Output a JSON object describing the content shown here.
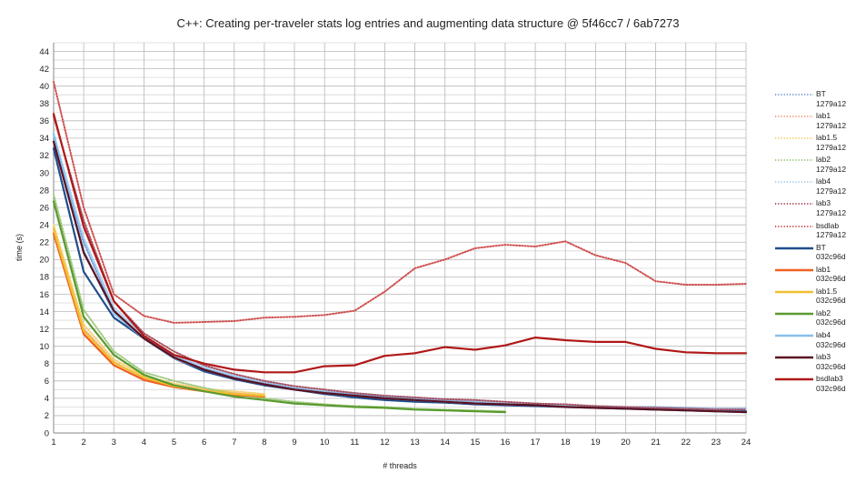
{
  "chart_data": {
    "type": "line",
    "title": "C++: Creating per-traveler stats log entries and augmenting data structure @ 5f46cc7 / 6ab7273",
    "xlabel": "# threads",
    "ylabel": "time (s)",
    "xlim": [
      1,
      24
    ],
    "ylim": [
      0,
      45
    ],
    "x_ticks": [
      1,
      2,
      3,
      4,
      5,
      6,
      7,
      8,
      9,
      10,
      11,
      12,
      13,
      14,
      15,
      16,
      17,
      18,
      19,
      20,
      21,
      22,
      23,
      24
    ],
    "y_ticks": [
      0,
      2,
      4,
      6,
      8,
      10,
      12,
      14,
      16,
      18,
      20,
      22,
      24,
      26,
      28,
      30,
      32,
      34,
      36,
      38,
      40,
      42,
      44
    ],
    "grid": true,
    "legend_position": "right",
    "series": [
      {
        "label": "BT",
        "sublabel": "1279a12",
        "color": "#7a9fd4",
        "style": "dotted",
        "x": [
          1,
          2,
          3,
          4,
          5,
          6,
          7,
          8,
          9,
          10,
          11,
          12,
          13,
          14,
          15,
          16,
          17,
          18,
          19,
          20,
          21,
          22,
          23,
          24
        ],
        "values": [
          34.0,
          22.0,
          14.0,
          11.0,
          8.8,
          7.4,
          6.5,
          5.8,
          5.2,
          4.8,
          4.5,
          4.2,
          4.0,
          3.8,
          3.6,
          3.5,
          3.4,
          3.2,
          3.1,
          3.0,
          3.0,
          2.9,
          2.8,
          2.8
        ]
      },
      {
        "label": "lab1",
        "sublabel": "1279a12",
        "color": "#f0a080",
        "style": "dotted",
        "x": [
          1,
          2,
          3,
          4,
          5,
          6,
          7,
          8
        ],
        "values": [
          23.5,
          12.0,
          8.2,
          6.3,
          5.5,
          5.0,
          4.6,
          4.3
        ]
      },
      {
        "label": "lab1.5",
        "sublabel": "1279a12",
        "color": "#f5d070",
        "style": "dotted",
        "x": [
          1,
          2,
          3,
          4,
          5,
          6,
          7,
          8
        ],
        "values": [
          24.0,
          12.5,
          8.5,
          6.6,
          5.7,
          5.1,
          4.8,
          4.5
        ]
      },
      {
        "label": "lab2",
        "sublabel": "1279a12",
        "color": "#a0c880",
        "style": "dotted",
        "x": [
          1,
          2,
          3,
          4,
          5,
          6,
          7,
          8,
          9,
          10,
          11,
          12,
          13,
          14,
          15,
          16
        ],
        "values": [
          27.5,
          14.2,
          9.4,
          7.0,
          6.0,
          5.2,
          4.5,
          4.0,
          3.6,
          3.3,
          3.1,
          3.0,
          2.8,
          2.7,
          2.6,
          2.5
        ]
      },
      {
        "label": "lab4",
        "sublabel": "1279a12",
        "color": "#a8d0f0",
        "style": "dotted",
        "x": [
          1,
          2,
          3,
          4,
          5,
          6,
          7,
          8,
          9,
          10,
          11,
          12,
          13,
          14,
          15,
          16,
          17,
          18,
          19,
          20,
          21,
          22,
          23,
          24
        ],
        "values": [
          34.5,
          22.5,
          14.5,
          11.2,
          9.0,
          7.6,
          6.6,
          5.9,
          5.3,
          4.9,
          4.6,
          4.3,
          4.1,
          3.9,
          3.7,
          3.5,
          3.4,
          3.2,
          3.1,
          3.0,
          2.9,
          2.8,
          2.7,
          2.7
        ]
      },
      {
        "label": "lab3",
        "sublabel": "1279a12",
        "color": "#a85060",
        "style": "dotted",
        "x": [
          1,
          2,
          3,
          4,
          5,
          6,
          7,
          8,
          9,
          10,
          11,
          12,
          13,
          14,
          15,
          16,
          17,
          18,
          19,
          20,
          21,
          22,
          23,
          24
        ],
        "values": [
          36.5,
          24.5,
          15.2,
          11.5,
          9.4,
          7.8,
          6.8,
          6.0,
          5.4,
          5.0,
          4.6,
          4.3,
          4.1,
          3.9,
          3.8,
          3.6,
          3.4,
          3.3,
          3.1,
          3.0,
          2.9,
          2.8,
          2.7,
          2.7
        ]
      },
      {
        "label": "bsdlab",
        "sublabel": "1279a12",
        "color": "#d05050",
        "style": "dotted",
        "x": [
          1,
          2,
          3,
          4,
          5,
          6,
          7,
          8,
          9,
          10,
          11,
          12,
          13,
          14,
          15,
          16,
          17,
          18,
          19,
          20,
          21,
          22,
          23,
          24
        ],
        "values": [
          40.5,
          26.0,
          16.0,
          13.5,
          12.7,
          12.8,
          12.9,
          13.3,
          13.4,
          13.6,
          14.1,
          16.3,
          19.0,
          20.0,
          21.3,
          21.7,
          21.5,
          22.1,
          20.5,
          19.6,
          17.5,
          17.1,
          17.1,
          17.2
        ]
      },
      {
        "label": "BT",
        "sublabel": "032c96d",
        "color": "#1f4e8c",
        "style": "solid",
        "x": [
          1,
          2,
          3,
          4,
          5,
          6,
          7,
          8,
          9,
          10,
          11,
          12,
          13,
          14,
          15,
          16,
          17,
          18,
          19,
          20,
          21,
          22,
          23,
          24
        ],
        "values": [
          32.8,
          18.6,
          13.3,
          10.9,
          8.6,
          7.1,
          6.2,
          5.5,
          5.0,
          4.5,
          4.1,
          3.8,
          3.6,
          3.5,
          3.3,
          3.2,
          3.1,
          3.0,
          2.9,
          2.8,
          2.7,
          2.6,
          2.5,
          2.5
        ]
      },
      {
        "label": "lab1",
        "sublabel": "032c96d",
        "color": "#f06020",
        "style": "solid",
        "x": [
          1,
          2,
          3,
          4,
          5,
          6,
          7,
          8
        ],
        "values": [
          23.0,
          11.4,
          7.8,
          6.1,
          5.3,
          4.8,
          4.4,
          4.2
        ]
      },
      {
        "label": "lab1.5",
        "sublabel": "032c96d",
        "color": "#f0c030",
        "style": "solid",
        "x": [
          1,
          2,
          3,
          4,
          5,
          6,
          7,
          8
        ],
        "values": [
          23.5,
          11.8,
          8.1,
          6.4,
          5.4,
          4.9,
          4.5,
          4.3
        ]
      },
      {
        "label": "lab2",
        "sublabel": "032c96d",
        "color": "#5a9a30",
        "style": "solid",
        "x": [
          1,
          2,
          3,
          4,
          5,
          6,
          7,
          8,
          9,
          10,
          11,
          12,
          13,
          14,
          15,
          16
        ],
        "values": [
          26.7,
          13.4,
          9.0,
          6.7,
          5.5,
          4.8,
          4.2,
          3.8,
          3.4,
          3.2,
          3.0,
          2.9,
          2.7,
          2.6,
          2.5,
          2.4
        ]
      },
      {
        "label": "lab4",
        "sublabel": "032c96d",
        "color": "#88c0ee",
        "style": "solid",
        "x": [
          1,
          2,
          3,
          4,
          5,
          6,
          7,
          8,
          9,
          10,
          11,
          12,
          13,
          14,
          15,
          16,
          17,
          18,
          19,
          20,
          21,
          22,
          23,
          24
        ],
        "values": [
          34.5,
          21.0,
          13.8,
          10.9,
          8.6,
          7.3,
          6.3,
          5.6,
          5.0,
          4.6,
          4.3,
          4.0,
          3.8,
          3.6,
          3.4,
          3.3,
          3.2,
          3.0,
          2.9,
          2.8,
          2.7,
          2.6,
          2.5,
          2.4
        ]
      },
      {
        "label": "lab3",
        "sublabel": "032c96d",
        "color": "#5a1020",
        "style": "solid",
        "x": [
          1,
          2,
          3,
          4,
          5,
          6,
          7,
          8,
          9,
          10,
          11,
          12,
          13,
          14,
          15,
          16,
          17,
          18,
          19,
          20,
          21,
          22,
          23,
          24
        ],
        "values": [
          33.6,
          20.8,
          14.1,
          10.9,
          8.7,
          7.3,
          6.3,
          5.6,
          5.0,
          4.6,
          4.3,
          4.0,
          3.8,
          3.6,
          3.4,
          3.3,
          3.2,
          3.0,
          2.9,
          2.8,
          2.7,
          2.6,
          2.5,
          2.4
        ]
      },
      {
        "label": "bsdlab3",
        "sublabel": "032c96d",
        "color": "#b01818",
        "style": "solid",
        "x": [
          1,
          2,
          3,
          4,
          5,
          6,
          7,
          8,
          9,
          10,
          11,
          12,
          13,
          14,
          15,
          16,
          17,
          18,
          19,
          20,
          21,
          22,
          23,
          24
        ],
        "values": [
          36.8,
          23.8,
          15.2,
          11.2,
          9.0,
          8.0,
          7.3,
          7.0,
          7.0,
          7.7,
          7.8,
          8.9,
          9.2,
          9.9,
          9.6,
          10.1,
          11.0,
          10.7,
          10.5,
          10.5,
          9.7,
          9.3,
          9.2,
          9.2
        ]
      }
    ]
  }
}
